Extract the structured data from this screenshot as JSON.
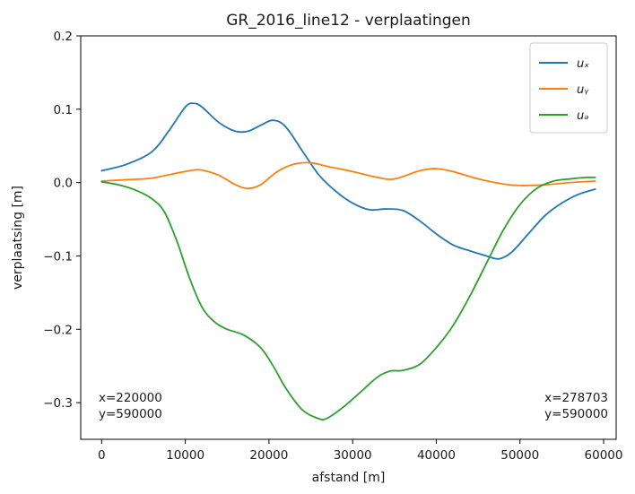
{
  "chart_data": {
    "type": "line",
    "title": "GR_2016_line12 - verplaatingen",
    "xlabel": "afstand [m]",
    "ylabel": "verplaatsing [m]",
    "xlim": [
      -2500,
      61500
    ],
    "ylim": [
      -0.35,
      0.2
    ],
    "xticks": [
      0,
      10000,
      20000,
      30000,
      40000,
      50000,
      60000
    ],
    "xtick_labels": [
      "0",
      "10000",
      "20000",
      "30000",
      "40000",
      "50000",
      "60000"
    ],
    "yticks": [
      0.2,
      0.1,
      0.0,
      -0.1,
      -0.2,
      -0.3
    ],
    "ytick_labels": [
      "0.2",
      "0.1",
      "0.0",
      "−0.1",
      "−0.2",
      "−0.3"
    ],
    "grid": false,
    "legend_position": "top-right",
    "series": [
      {
        "name": "uₓ",
        "color": "#1f77b4",
        "x": [
          0,
          3000,
          6000,
          8000,
          10000,
          11000,
          12000,
          14000,
          16000,
          17500,
          19000,
          20500,
          22000,
          24000,
          26000,
          28000,
          30000,
          32000,
          34000,
          36000,
          38000,
          40000,
          42000,
          44000,
          46000,
          47500,
          49000,
          51000,
          53000,
          55000,
          57000,
          59000
        ],
        "y": [
          0.016,
          0.025,
          0.042,
          0.07,
          0.103,
          0.108,
          0.103,
          0.082,
          0.07,
          0.07,
          0.078,
          0.085,
          0.076,
          0.043,
          0.01,
          -0.012,
          -0.028,
          -0.037,
          -0.036,
          -0.038,
          -0.052,
          -0.07,
          -0.085,
          -0.093,
          -0.1,
          -0.104,
          -0.095,
          -0.07,
          -0.045,
          -0.028,
          -0.016,
          -0.009
        ]
      },
      {
        "name": "uᵧ",
        "color": "#ff7f0e",
        "x": [
          0,
          3000,
          6000,
          9000,
          11000,
          12000,
          14000,
          16000,
          17500,
          19000,
          21000,
          23000,
          25000,
          27000,
          30000,
          33000,
          35000,
          38000,
          40000,
          42000,
          45000,
          48000,
          50000,
          53000,
          56000,
          59000
        ],
        "y": [
          0.002,
          0.004,
          0.006,
          0.013,
          0.017,
          0.017,
          0.01,
          -0.003,
          -0.008,
          -0.003,
          0.015,
          0.025,
          0.027,
          0.022,
          0.015,
          0.007,
          0.005,
          0.016,
          0.019,
          0.015,
          0.005,
          -0.002,
          -0.004,
          -0.003,
          0.0,
          0.002
        ]
      },
      {
        "name": "uₔ",
        "color": "#2ca02c",
        "x": [
          0,
          2000,
          4000,
          6000,
          7500,
          9000,
          10500,
          12000,
          13500,
          15000,
          17000,
          19000,
          20500,
          22000,
          24000,
          26000,
          27000,
          29000,
          31000,
          33000,
          34500,
          36000,
          38000,
          40000,
          42000,
          44000,
          46000,
          48000,
          50000,
          52000,
          54000,
          56000,
          58000,
          59000
        ],
        "y": [
          0.001,
          -0.003,
          -0.01,
          -0.022,
          -0.04,
          -0.08,
          -0.13,
          -0.17,
          -0.19,
          -0.2,
          -0.208,
          -0.225,
          -0.25,
          -0.28,
          -0.31,
          -0.322,
          -0.321,
          -0.305,
          -0.285,
          -0.265,
          -0.257,
          -0.256,
          -0.248,
          -0.225,
          -0.195,
          -0.155,
          -0.11,
          -0.065,
          -0.03,
          -0.008,
          0.002,
          0.005,
          0.007,
          0.007
        ]
      }
    ],
    "annotations": [
      {
        "lines": [
          "x=220000",
          "y=590000"
        ],
        "position": "bottom-left"
      },
      {
        "lines": [
          "x=278703",
          "y=590000"
        ],
        "position": "bottom-right"
      }
    ]
  }
}
